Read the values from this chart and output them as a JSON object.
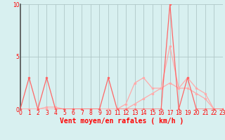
{
  "x_values": [
    0,
    1,
    2,
    3,
    4,
    5,
    6,
    7,
    8,
    9,
    10,
    11,
    12,
    13,
    14,
    15,
    16,
    17,
    18,
    19,
    20,
    21,
    22,
    23
  ],
  "line1_y": [
    0,
    3,
    0,
    3,
    0,
    0,
    0,
    0,
    0,
    0,
    3,
    0,
    0,
    0,
    0,
    0,
    0,
    10,
    0,
    3,
    0,
    0,
    0,
    0
  ],
  "line2_y": [
    0,
    0,
    0,
    0.2,
    0.2,
    0,
    0,
    0,
    0,
    0,
    0,
    0,
    0.5,
    2.5,
    3,
    2,
    2,
    6,
    2,
    3,
    2,
    1.5,
    0,
    0
  ],
  "line3_y": [
    0,
    0,
    0,
    0,
    0,
    0,
    0,
    0,
    0,
    0,
    0,
    0,
    0,
    0.5,
    1,
    1.5,
    2,
    2.5,
    2,
    2,
    1.5,
    1,
    0,
    0
  ],
  "background_color": "#d8f0f0",
  "grid_color": "#b0c8c8",
  "line_color1": "#ff6666",
  "line_color2": "#ffaaaa",
  "xlabel": "Vent moyen/en rafales ( km/h )",
  "xlim": [
    0,
    23
  ],
  "ylim": [
    0,
    10
  ],
  "yticks": [
    0,
    5,
    10
  ],
  "xticks": [
    0,
    1,
    2,
    3,
    4,
    5,
    6,
    7,
    8,
    9,
    10,
    11,
    12,
    13,
    14,
    15,
    16,
    17,
    18,
    19,
    20,
    21,
    22,
    23
  ],
  "figsize": [
    3.2,
    2.0
  ],
  "dpi": 100
}
